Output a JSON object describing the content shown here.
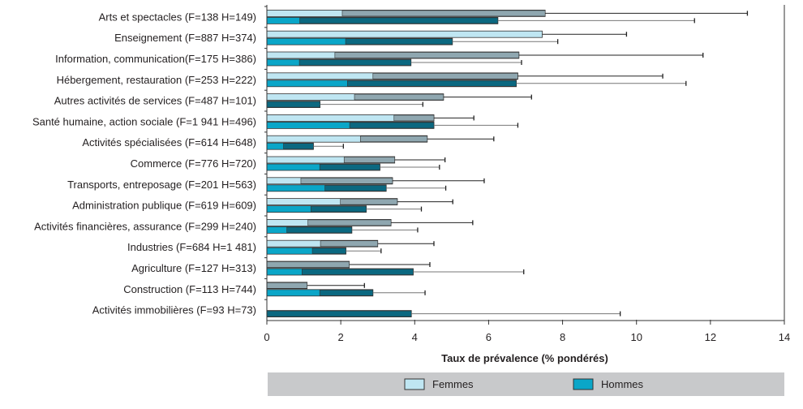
{
  "chart_data": {
    "type": "bar",
    "orientation": "horizontal",
    "title": "",
    "xlabel": "Taux de prévalence (% pondérés)",
    "ylabel": "",
    "xlim": [
      0,
      14
    ],
    "xticks": [
      "0",
      "2",
      "4",
      "6",
      "8",
      "10",
      "12",
      "14"
    ],
    "grid": false,
    "legend_position": "bottom",
    "error_bars": "confidence interval (lower bound shown as bar shading, upper bound as whisker)",
    "categories": [
      "Arts et spectacles (F=138 H=149)",
      "Enseignement (F=887 H=374)",
      "Information, communication(F=175 H=386)",
      "Hébergement, restauration (F=253 H=222)",
      "Autres activités de services (F=487 H=101)",
      "Santé humaine, action sociale (F=1 941 H=496)",
      "Activités spécialisées (F=614 H=648)",
      "Commerce (F=776 H=720)",
      "Transports, entreposage (F=201 H=563)",
      "Administration publique (F=619 H=609)",
      "Activités financières, assurance (F=299 H=240)",
      "Industries (F=684 H=1 481)",
      "Agriculture (F=127 H=313)",
      "Construction (F=113 H=744)",
      "Activités immobilières (F=93 H=73)"
    ],
    "series": [
      {
        "name": "Femmes",
        "color": "#bfe6f2",
        "ci_color": "#8fa7b0",
        "values": [
          7.53,
          7.45,
          6.82,
          6.79,
          4.78,
          4.52,
          4.34,
          3.46,
          3.4,
          3.53,
          3.36,
          3.0,
          2.23,
          1.09,
          null
        ],
        "lower": [
          2.04,
          null,
          1.84,
          2.87,
          2.37,
          3.44,
          2.53,
          2.09,
          0.92,
          1.99,
          1.11,
          1.45,
          0,
          0,
          null
        ],
        "upper": [
          13.0,
          9.73,
          11.8,
          10.71,
          7.16,
          5.6,
          6.14,
          4.82,
          5.88,
          5.03,
          5.57,
          4.52,
          4.41,
          2.64,
          null
        ]
      },
      {
        "name": "Hommes",
        "color": "#0aa6c8",
        "ci_color": "#0b6880",
        "values": [
          6.25,
          5.02,
          3.9,
          6.75,
          1.44,
          4.52,
          1.26,
          3.06,
          3.23,
          2.69,
          2.3,
          2.14,
          3.96,
          2.87,
          3.91
        ],
        "lower": [
          0.89,
          2.13,
          0.88,
          2.18,
          0,
          2.24,
          0.45,
          1.43,
          1.57,
          1.19,
          0.54,
          1.23,
          0.95,
          1.43,
          0
        ],
        "upper": [
          11.57,
          7.87,
          6.89,
          11.34,
          4.22,
          6.79,
          2.07,
          4.67,
          4.84,
          4.18,
          4.08,
          3.09,
          6.95,
          4.28,
          9.56
        ]
      }
    ]
  },
  "legend": {
    "femmes": "Femmes",
    "hommes": "Hommes"
  }
}
